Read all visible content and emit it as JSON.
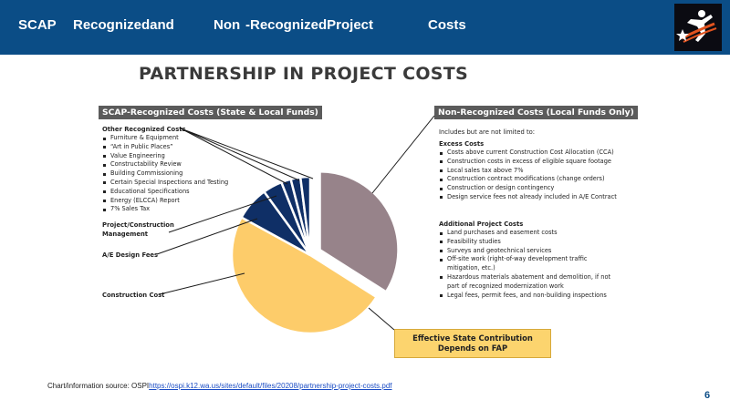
{
  "header": {
    "parts": [
      "SCAP",
      "Recognizedand",
      "Non",
      "-RecognizedProject",
      "Costs"
    ]
  },
  "main_title": "PARTNERSHIP IN PROJECT COSTS",
  "left_header": "SCAP-Recognized Costs (State & Local Funds)",
  "right_header": "Non-Recognized Costs (Local Funds Only)",
  "left_labels": {
    "other_title": "Other Recognized Costs",
    "other_items": [
      "Furniture & Equipment",
      "“Art in Public Places”",
      "Value Engineering",
      "Constructability Review",
      "Building Commissioning",
      "Certain Special Inspections and Testing",
      "Educational Specifications",
      "Energy (ELCCA) Report",
      "7% Sales Tax"
    ],
    "pm_line1": "Project/Construction",
    "pm_line2": "Management",
    "ae": "A/E Design Fees",
    "construction": "Construction Cost"
  },
  "right_labels": {
    "includes": "Includes but are not limited to:",
    "excess_title": "Excess Costs",
    "excess_items": [
      "Costs above current Construction Cost Allocation (CCA)",
      "Construction costs in excess of eligible square footage",
      "Local sales tax above 7%",
      "Construction contract modifications (change orders)",
      "Construction or design contingency",
      "Design service fees not already included in A/E Contract"
    ],
    "additional_title": "Additional Project Costs",
    "additional_items": [
      {
        "text": "Land purchases and easement costs",
        "cont": false
      },
      {
        "text": "Feasibility studies",
        "cont": false
      },
      {
        "text": "Surveys and geotechnical services",
        "cont": false
      },
      {
        "text": "Off-site work (right-of-way development traffic",
        "cont": false
      },
      {
        "text": "mitigation, etc.)",
        "cont": true
      },
      {
        "text": "Hazardous materials abatement and demolition, if not",
        "cont": false
      },
      {
        "text": "part of recognized modernization work",
        "cont": true
      },
      {
        "text": "Legal fees, permit fees, and non-building inspections",
        "cont": false
      }
    ]
  },
  "fap_box": {
    "line1": "Effective State Contribution",
    "line2": "Depends on FAP"
  },
  "footer": {
    "prefix": "Chart/information source: OSPI",
    "link": "https://ospi.k12.wa.us/sites/default/files/20208/partnership-project-costs.pdf"
  },
  "page_number": "6",
  "colors": {
    "header_bg": "#0b4d86",
    "non_recognized": "#97838a",
    "construction": "#fdcc6a",
    "ae_fees": "#0f2f66",
    "pm": "#0f2f66",
    "other": "#0f2f66",
    "dark_box": "#5b5b5b"
  },
  "chart_data": {
    "type": "pie",
    "slices": [
      {
        "label": "Non-Recognized Costs",
        "value": 34,
        "color": "#97838a",
        "exploded": true
      },
      {
        "label": "Construction Cost",
        "value": 49,
        "color": "#fdcc6a",
        "exploded": false
      },
      {
        "label": "A/E Design Fees",
        "value": 7,
        "color": "#0f2f66",
        "exploded": false
      },
      {
        "label": "Project/Construction Management",
        "value": 4,
        "color": "#0f2f66",
        "exploded": false
      },
      {
        "label": "Other Recognized Costs (1)",
        "value": 2,
        "color": "#0f2f66",
        "exploded": false
      },
      {
        "label": "Other Recognized Costs (2)",
        "value": 2,
        "color": "#0f2f66",
        "exploded": false
      },
      {
        "label": "Other Recognized Costs (3)",
        "value": 2,
        "color": "#0f2f66",
        "exploded": false
      }
    ],
    "title": "PARTNERSHIP IN PROJECT COSTS",
    "legend": "none"
  }
}
